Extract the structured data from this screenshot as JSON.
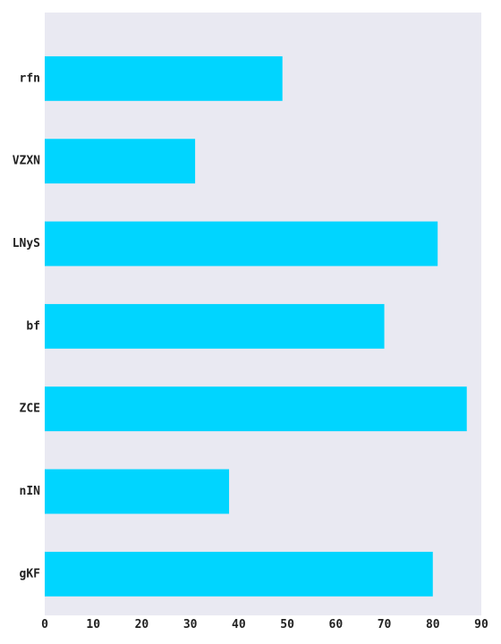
{
  "chart_data": {
    "type": "bar",
    "orientation": "horizontal",
    "categories": [
      "rfn",
      "VZXN",
      "LNyS",
      "bf",
      "ZCE",
      "nIN",
      "gKF"
    ],
    "values": [
      49,
      31,
      81,
      70,
      87,
      38,
      80
    ],
    "title": "",
    "xlabel": "",
    "ylabel": "",
    "xlim": [
      0,
      90
    ],
    "xticks": [
      0,
      10,
      20,
      30,
      40,
      50,
      60,
      70,
      80,
      90
    ],
    "grid": false,
    "legend": "none",
    "colors": {
      "bar": "#00d5ff",
      "plot_background": "#e9e9f2",
      "text": "#222222"
    }
  }
}
